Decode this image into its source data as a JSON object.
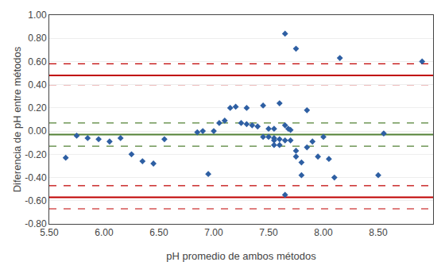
{
  "chart_data": {
    "type": "scatter",
    "x": [
      5.65,
      5.75,
      5.85,
      5.95,
      6.05,
      6.15,
      6.25,
      6.35,
      6.45,
      6.55,
      6.85,
      6.9,
      6.95,
      7.0,
      7.05,
      7.1,
      7.15,
      7.2,
      7.25,
      7.3,
      7.3,
      7.35,
      7.4,
      7.45,
      7.45,
      7.5,
      7.5,
      7.55,
      7.55,
      7.55,
      7.55,
      7.6,
      7.6,
      7.6,
      7.65,
      7.65,
      7.65,
      7.65,
      7.68,
      7.7,
      7.7,
      7.75,
      7.75,
      7.75,
      7.8,
      7.8,
      7.85,
      7.85,
      7.9,
      7.95,
      8.0,
      8.05,
      8.1,
      8.15,
      8.5,
      8.55,
      8.9
    ],
    "values": [
      -0.23,
      -0.04,
      -0.06,
      -0.07,
      -0.09,
      -0.06,
      -0.2,
      -0.26,
      -0.28,
      -0.07,
      -0.01,
      0.0,
      -0.37,
      0.0,
      0.07,
      0.09,
      0.2,
      0.21,
      0.07,
      0.06,
      0.2,
      0.05,
      0.04,
      -0.05,
      0.22,
      -0.05,
      0.02,
      -0.08,
      -0.06,
      -0.12,
      0.02,
      -0.12,
      -0.07,
      0.24,
      -0.55,
      0.84,
      -0.08,
      0.05,
      0.02,
      -0.08,
      0.01,
      0.71,
      -0.17,
      -0.22,
      -0.38,
      -0.27,
      -0.14,
      0.18,
      -0.09,
      -0.22,
      -0.05,
      -0.24,
      -0.4,
      0.63,
      -0.38,
      -0.02,
      0.6
    ],
    "color": "#2E5FA3",
    "marker": "diamond",
    "hlines": [
      {
        "y": 0.58,
        "color": "#C00000",
        "line_style": "dashed"
      },
      {
        "y": -0.67,
        "color": "#C00000",
        "line_style": "dashed"
      },
      {
        "y": 0.48,
        "color": "#C00000",
        "line_style": "solid"
      },
      {
        "y": -0.57,
        "color": "#C00000",
        "line_style": "solid"
      },
      {
        "y": 0.4,
        "color": "#C00000",
        "line_style": "dashed"
      },
      {
        "y": -0.47,
        "color": "#C00000",
        "line_style": "dashed"
      },
      {
        "y": 0.07,
        "color": "#538135",
        "line_style": "dashed"
      },
      {
        "y": -0.13,
        "color": "#538135",
        "line_style": "dashed"
      },
      {
        "y": -0.03,
        "color": "#538135",
        "line_style": "solid"
      }
    ],
    "xlabel": "pH promedio de ambos métodos",
    "ylabel": "Diferencia de pH entre métodos",
    "xlim": [
      5.5,
      9.0
    ],
    "ylim": [
      -0.8,
      1.0
    ],
    "xticks": [
      {
        "value": 5.5,
        "label": "5.50"
      },
      {
        "value": 6.0,
        "label": "6.00"
      },
      {
        "value": 6.5,
        "label": "6.50"
      },
      {
        "value": 7.0,
        "label": "7.00"
      },
      {
        "value": 7.5,
        "label": "7.50"
      },
      {
        "value": 8.0,
        "label": "8.00"
      },
      {
        "value": 8.5,
        "label": "8.50"
      }
    ],
    "yticks": [
      {
        "value": -0.8,
        "label": "-0.80"
      },
      {
        "value": -0.6,
        "label": "-0.60"
      },
      {
        "value": -0.4,
        "label": "-0.40"
      },
      {
        "value": -0.2,
        "label": "-0.20"
      },
      {
        "value": 0.0,
        "label": "0.00"
      },
      {
        "value": 0.2,
        "label": "0.20"
      },
      {
        "value": 0.4,
        "label": "0.40"
      },
      {
        "value": 0.6,
        "label": "0.60"
      },
      {
        "value": 0.8,
        "label": "0.80"
      },
      {
        "value": 1.0,
        "label": "1.00"
      }
    ],
    "grid": "y"
  }
}
